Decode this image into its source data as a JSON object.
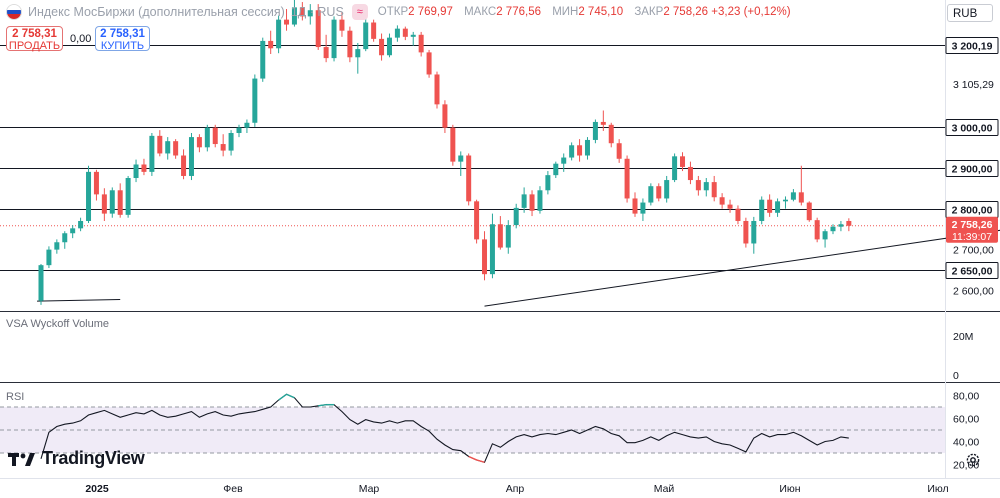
{
  "header": {
    "title": "Индекс МосБиржи (дополнительная сессия)",
    "ticker": "1Д · RUS",
    "ohlc": [
      {
        "label": "ОТКР",
        "value": "2 769,97"
      },
      {
        "label": "МАКС",
        "value": "2 776,56"
      },
      {
        "label": "МИН",
        "value": "2 745,10"
      },
      {
        "label": "ЗАКР",
        "value": "2 758,26 +3,23 (+0,12%)"
      }
    ],
    "currency": "RUB",
    "colors": {
      "up": "#26a69a",
      "down": "#ef5350",
      "line": "#131722"
    }
  },
  "trade": {
    "sell_value": "2 758,31",
    "sell_label": "ПРОДАТЬ",
    "spread": "0,00",
    "buy_value": "2 758,31",
    "buy_label": "КУПИТЬ"
  },
  "branding": {
    "name": "TradingView",
    "icons": [
      "tradingview-logo-icon",
      "gear-icon"
    ]
  },
  "chart_data": [
    {
      "type": "candlestick",
      "y_scale": [
        2550,
        3310
      ],
      "x_ticks": [
        "2025",
        "Фев",
        "Мар",
        "Апр",
        "Май",
        "Июн",
        "Июл"
      ],
      "y_ticks": [
        "2 600,00",
        "2 700,00",
        "3 105,29"
      ],
      "levels": [
        {
          "value": 3200.19,
          "label": "3 200,19"
        },
        {
          "value": 3000,
          "label": "3 000,00"
        },
        {
          "value": 2900,
          "label": "2 900,00"
        },
        {
          "value": 2800,
          "label": "2 800,00"
        },
        {
          "value": 2650,
          "label": "2 650,00"
        }
      ],
      "last_price": {
        "value": 2758.26,
        "label": "2 758,26",
        "countdown": "11:39:07"
      },
      "trendlines": [
        {
          "points": [
            [
              -0.5,
              2574
            ],
            [
              10,
              2578
            ]
          ]
        },
        {
          "points": [
            [
              56,
              2562
            ],
            [
              127,
              2764
            ]
          ]
        }
      ],
      "candles": [
        [
          2575,
          2665,
          2565,
          2662
        ],
        [
          2662,
          2708,
          2655,
          2700
        ],
        [
          2700,
          2725,
          2690,
          2718
        ],
        [
          2718,
          2745,
          2702,
          2740
        ],
        [
          2740,
          2760,
          2728,
          2752
        ],
        [
          2752,
          2778,
          2745,
          2770
        ],
        [
          2770,
          2905,
          2765,
          2890
        ],
        [
          2890,
          2895,
          2820,
          2835
        ],
        [
          2835,
          2850,
          2770,
          2788
        ],
        [
          2788,
          2852,
          2778,
          2845
        ],
        [
          2845,
          2862,
          2778,
          2785
        ],
        [
          2785,
          2880,
          2778,
          2875
        ],
        [
          2875,
          2920,
          2865,
          2908
        ],
        [
          2908,
          2922,
          2882,
          2890
        ],
        [
          2890,
          2985,
          2880,
          2978
        ],
        [
          2978,
          2992,
          2928,
          2935
        ],
        [
          2935,
          2975,
          2920,
          2965
        ],
        [
          2965,
          2970,
          2922,
          2930
        ],
        [
          2930,
          2945,
          2872,
          2880
        ],
        [
          2880,
          2985,
          2870,
          2975
        ],
        [
          2975,
          2982,
          2938,
          2950
        ],
        [
          2950,
          3005,
          2940,
          2998
        ],
        [
          2998,
          3005,
          2950,
          2958
        ],
        [
          2958,
          2982,
          2928,
          2942
        ],
        [
          2942,
          2992,
          2930,
          2985
        ],
        [
          2985,
          3005,
          2975,
          2998
        ],
        [
          2998,
          3018,
          2985,
          3010
        ],
        [
          3010,
          3128,
          3000,
          3118
        ],
        [
          3118,
          3218,
          3110,
          3210
        ],
        [
          3210,
          3235,
          3178,
          3192
        ],
        [
          3192,
          3272,
          3180,
          3262
        ],
        [
          3262,
          3288,
          3235,
          3250
        ],
        [
          3250,
          3310,
          3245,
          3292
        ],
        [
          3292,
          3305,
          3260,
          3270
        ],
        [
          3270,
          3300,
          3250,
          3285
        ],
        [
          3285,
          3300,
          3188,
          3195
        ],
        [
          3195,
          3225,
          3158,
          3168
        ],
        [
          3168,
          3270,
          3160,
          3262
        ],
        [
          3262,
          3280,
          3220,
          3235
        ],
        [
          3235,
          3245,
          3158,
          3170
        ],
        [
          3170,
          3205,
          3130,
          3190
        ],
        [
          3190,
          3265,
          3185,
          3255
        ],
        [
          3255,
          3262,
          3208,
          3215
        ],
        [
          3215,
          3228,
          3162,
          3175
        ],
        [
          3175,
          3228,
          3170,
          3218
        ],
        [
          3218,
          3248,
          3208,
          3240
        ],
        [
          3240,
          3245,
          3212,
          3220
        ],
        [
          3220,
          3232,
          3198,
          3225
        ],
        [
          3225,
          3232,
          3172,
          3182
        ],
        [
          3182,
          3188,
          3120,
          3128
        ],
        [
          3128,
          3135,
          3045,
          3055
        ],
        [
          3055,
          3065,
          2985,
          2998
        ],
        [
          2998,
          3005,
          2905,
          2915
        ],
        [
          2915,
          2940,
          2880,
          2930
        ],
        [
          2930,
          2935,
          2808,
          2818
        ],
        [
          2818,
          2822,
          2715,
          2725
        ],
        [
          2725,
          2745,
          2625,
          2640
        ],
        [
          2640,
          2788,
          2630,
          2762
        ],
        [
          2762,
          2782,
          2700,
          2705
        ],
        [
          2705,
          2772,
          2690,
          2760
        ],
        [
          2760,
          2812,
          2752,
          2802
        ],
        [
          2802,
          2852,
          2790,
          2835
        ],
        [
          2835,
          2845,
          2782,
          2795
        ],
        [
          2795,
          2855,
          2788,
          2845
        ],
        [
          2845,
          2892,
          2835,
          2882
        ],
        [
          2882,
          2915,
          2875,
          2910
        ],
        [
          2910,
          2935,
          2890,
          2925
        ],
        [
          2925,
          2962,
          2918,
          2955
        ],
        [
          2955,
          2970,
          2915,
          2930
        ],
        [
          2930,
          2975,
          2920,
          2968
        ],
        [
          2968,
          3018,
          2960,
          3012
        ],
        [
          3012,
          3040,
          2990,
          3005
        ],
        [
          3005,
          3010,
          2950,
          2960
        ],
        [
          2960,
          2970,
          2912,
          2922
        ],
        [
          2922,
          2930,
          2815,
          2825
        ],
        [
          2825,
          2840,
          2780,
          2788
        ],
        [
          2788,
          2825,
          2770,
          2815
        ],
        [
          2815,
          2862,
          2808,
          2855
        ],
        [
          2855,
          2862,
          2818,
          2825
        ],
        [
          2825,
          2880,
          2815,
          2870
        ],
        [
          2870,
          2935,
          2865,
          2928
        ],
        [
          2928,
          2938,
          2892,
          2902
        ],
        [
          2902,
          2915,
          2860,
          2870
        ],
        [
          2870,
          2880,
          2832,
          2845
        ],
        [
          2845,
          2875,
          2830,
          2865
        ],
        [
          2865,
          2880,
          2818,
          2828
        ],
        [
          2828,
          2838,
          2800,
          2810
        ],
        [
          2810,
          2822,
          2790,
          2800
        ],
        [
          2800,
          2808,
          2762,
          2770
        ],
        [
          2770,
          2778,
          2705,
          2715
        ],
        [
          2715,
          2780,
          2690,
          2770
        ],
        [
          2770,
          2830,
          2762,
          2822
        ],
        [
          2822,
          2835,
          2780,
          2790
        ],
        [
          2790,
          2825,
          2780,
          2818
        ],
        [
          2818,
          2830,
          2800,
          2822
        ],
        [
          2822,
          2848,
          2818,
          2840
        ],
        [
          2840,
          2905,
          2808,
          2815
        ],
        [
          2815,
          2818,
          2768,
          2772
        ],
        [
          2772,
          2778,
          2718,
          2725
        ],
        [
          2725,
          2750,
          2705,
          2745
        ],
        [
          2745,
          2762,
          2738,
          2756
        ],
        [
          2756,
          2770,
          2745,
          2762
        ],
        [
          2769.97,
          2776.56,
          2745.1,
          2758.26
        ]
      ]
    },
    {
      "type": "volume",
      "title": "VSA Wyckoff Volume",
      "y_ticks": [
        "20M",
        "0"
      ]
    },
    {
      "type": "line",
      "title": "RSI",
      "y_ticks": [
        "80,00",
        "60,00",
        "40,00",
        "20,00"
      ],
      "band": [
        30,
        70
      ],
      "mid": 50,
      "values": [
        25,
        48,
        53,
        55,
        56,
        58,
        63,
        65,
        67,
        64,
        61,
        63,
        65,
        64,
        67,
        63,
        61,
        62,
        64,
        66,
        61,
        64,
        66,
        63,
        62,
        64,
        65,
        66,
        68,
        70,
        76,
        81,
        78,
        70,
        70,
        71,
        72,
        72,
        66,
        59,
        55,
        59,
        57,
        56,
        58,
        56,
        58,
        58,
        53,
        49,
        42,
        37,
        33,
        32,
        27,
        24,
        22,
        38,
        35,
        40,
        44,
        46,
        44,
        46,
        47,
        46,
        48,
        50,
        47,
        50,
        53,
        51,
        47,
        45,
        39,
        39,
        41,
        44,
        41,
        45,
        48,
        46,
        44,
        43,
        44,
        40,
        38,
        37,
        34,
        31,
        43,
        47,
        44,
        46,
        46,
        48,
        45,
        41,
        37,
        40,
        41,
        44,
        43
      ]
    }
  ]
}
